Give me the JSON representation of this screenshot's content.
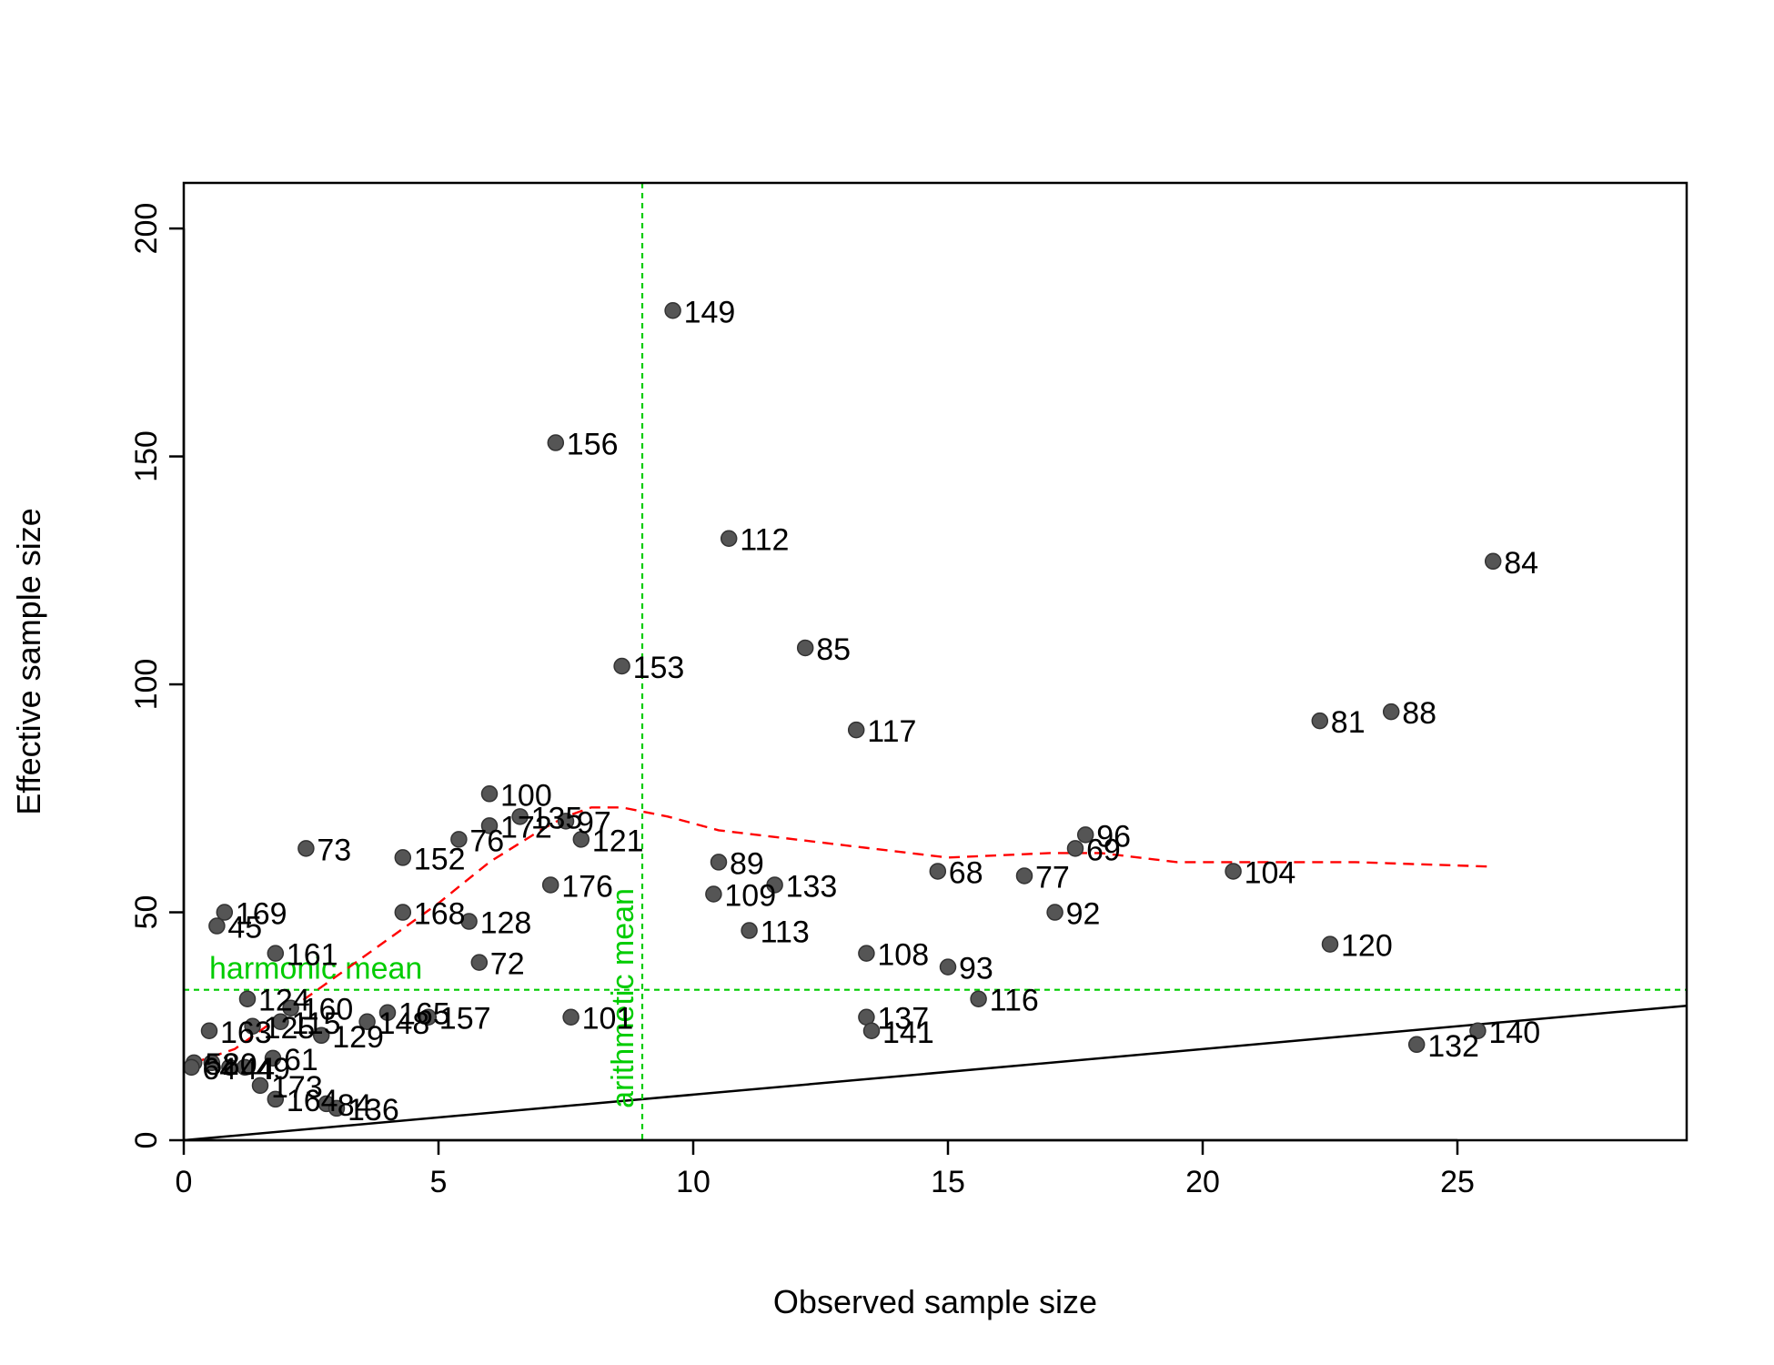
{
  "chart_data": {
    "type": "scatter",
    "xlabel": "Observed sample size",
    "ylabel": "Effective sample size",
    "xlim": [
      0,
      29.5
    ],
    "ylim": [
      0,
      210
    ],
    "x_ticks": [
      0,
      5,
      10,
      15,
      20,
      25
    ],
    "y_ticks": [
      0,
      50,
      100,
      150,
      200
    ],
    "grid": false,
    "point_color": "#555555",
    "smooth_color": "#ff0000",
    "reference_color": "#00cc00",
    "identity_line": {
      "from": [
        0,
        0
      ],
      "to": [
        29.5,
        29.5
      ]
    },
    "reference_lines": [
      {
        "orientation": "horizontal",
        "value": 33,
        "label": "harmonic mean"
      },
      {
        "orientation": "vertical",
        "value": 9,
        "label": "arithmetic mean"
      }
    ],
    "points": [
      {
        "label": "149",
        "x": 9.6,
        "y": 182
      },
      {
        "label": "156",
        "x": 7.3,
        "y": 153
      },
      {
        "label": "112",
        "x": 10.7,
        "y": 132
      },
      {
        "label": "84",
        "x": 25.7,
        "y": 127
      },
      {
        "label": "85",
        "x": 12.2,
        "y": 108
      },
      {
        "label": "153",
        "x": 8.6,
        "y": 104
      },
      {
        "label": "117",
        "x": 13.2,
        "y": 90
      },
      {
        "label": "81",
        "x": 22.3,
        "y": 92
      },
      {
        "label": "88",
        "x": 23.7,
        "y": 94
      },
      {
        "label": "100",
        "x": 6.0,
        "y": 76
      },
      {
        "label": "172",
        "x": 6.0,
        "y": 69
      },
      {
        "label": "135",
        "x": 6.6,
        "y": 71
      },
      {
        "label": "97",
        "x": 7.5,
        "y": 70
      },
      {
        "label": "76",
        "x": 5.4,
        "y": 66
      },
      {
        "label": "121",
        "x": 7.8,
        "y": 66
      },
      {
        "label": "73",
        "x": 2.4,
        "y": 64
      },
      {
        "label": "152",
        "x": 4.3,
        "y": 62
      },
      {
        "label": "96",
        "x": 17.7,
        "y": 67
      },
      {
        "label": "69",
        "x": 17.5,
        "y": 64
      },
      {
        "label": "89",
        "x": 10.5,
        "y": 61
      },
      {
        "label": "68",
        "x": 14.8,
        "y": 59
      },
      {
        "label": "77",
        "x": 16.5,
        "y": 58
      },
      {
        "label": "104",
        "x": 20.6,
        "y": 59
      },
      {
        "label": "176",
        "x": 7.2,
        "y": 56
      },
      {
        "label": "133",
        "x": 11.6,
        "y": 56
      },
      {
        "label": "109",
        "x": 10.4,
        "y": 54
      },
      {
        "label": "169",
        "x": 0.8,
        "y": 50
      },
      {
        "label": "168",
        "x": 4.3,
        "y": 50
      },
      {
        "label": "92",
        "x": 17.1,
        "y": 50
      },
      {
        "label": "128",
        "x": 5.6,
        "y": 48
      },
      {
        "label": "45",
        "x": 0.65,
        "y": 47
      },
      {
        "label": "113",
        "x": 11.1,
        "y": 46
      },
      {
        "label": "120",
        "x": 22.5,
        "y": 43
      },
      {
        "label": "161",
        "x": 1.8,
        "y": 41
      },
      {
        "label": "108",
        "x": 13.4,
        "y": 41
      },
      {
        "label": "72",
        "x": 5.8,
        "y": 39
      },
      {
        "label": "93",
        "x": 15.0,
        "y": 38
      },
      {
        "label": "124",
        "x": 1.25,
        "y": 31
      },
      {
        "label": "116",
        "x": 15.6,
        "y": 31
      },
      {
        "label": "160",
        "x": 2.1,
        "y": 29
      },
      {
        "label": "165",
        "x": 4.0,
        "y": 28
      },
      {
        "label": "101",
        "x": 7.6,
        "y": 27
      },
      {
        "label": "157",
        "x": 4.8,
        "y": 27
      },
      {
        "label": "137",
        "x": 13.4,
        "y": 27
      },
      {
        "label": "148",
        "x": 3.6,
        "y": 26
      },
      {
        "label": "115",
        "x": 1.9,
        "y": 26
      },
      {
        "label": "125",
        "x": 1.35,
        "y": 25
      },
      {
        "label": "141",
        "x": 13.5,
        "y": 24
      },
      {
        "label": "140",
        "x": 25.4,
        "y": 24
      },
      {
        "label": "129",
        "x": 2.7,
        "y": 23
      },
      {
        "label": "163",
        "x": 0.5,
        "y": 24
      },
      {
        "label": "132",
        "x": 24.2,
        "y": 21
      },
      {
        "label": "61",
        "x": 1.75,
        "y": 18
      },
      {
        "label": "52",
        "x": 0.2,
        "y": 17
      },
      {
        "label": "80",
        "x": 0.55,
        "y": 17
      },
      {
        "label": "64",
        "x": 0.15,
        "y": 16
      },
      {
        "label": "44",
        "x": 0.9,
        "y": 16
      },
      {
        "label": "49",
        "x": 1.2,
        "y": 16
      },
      {
        "label": "173",
        "x": 1.5,
        "y": 12
      },
      {
        "label": "164",
        "x": 1.8,
        "y": 9
      },
      {
        "label": "84",
        "x": 2.8,
        "y": 8
      },
      {
        "label": "136",
        "x": 3.0,
        "y": 7
      }
    ],
    "smooth_curve": [
      [
        0.2,
        17
      ],
      [
        1.0,
        20
      ],
      [
        2.0,
        28
      ],
      [
        3.0,
        36
      ],
      [
        4.0,
        44
      ],
      [
        5.0,
        52
      ],
      [
        6.0,
        61
      ],
      [
        7.0,
        68
      ],
      [
        7.5,
        71
      ],
      [
        8.0,
        73
      ],
      [
        8.6,
        73
      ],
      [
        9.5,
        71
      ],
      [
        10.5,
        68
      ],
      [
        12.0,
        66
      ],
      [
        13.5,
        64
      ],
      [
        15.0,
        62
      ],
      [
        17.0,
        63
      ],
      [
        18.0,
        63
      ],
      [
        19.5,
        61
      ],
      [
        21.0,
        61
      ],
      [
        23.0,
        61
      ],
      [
        25.7,
        60
      ]
    ]
  }
}
